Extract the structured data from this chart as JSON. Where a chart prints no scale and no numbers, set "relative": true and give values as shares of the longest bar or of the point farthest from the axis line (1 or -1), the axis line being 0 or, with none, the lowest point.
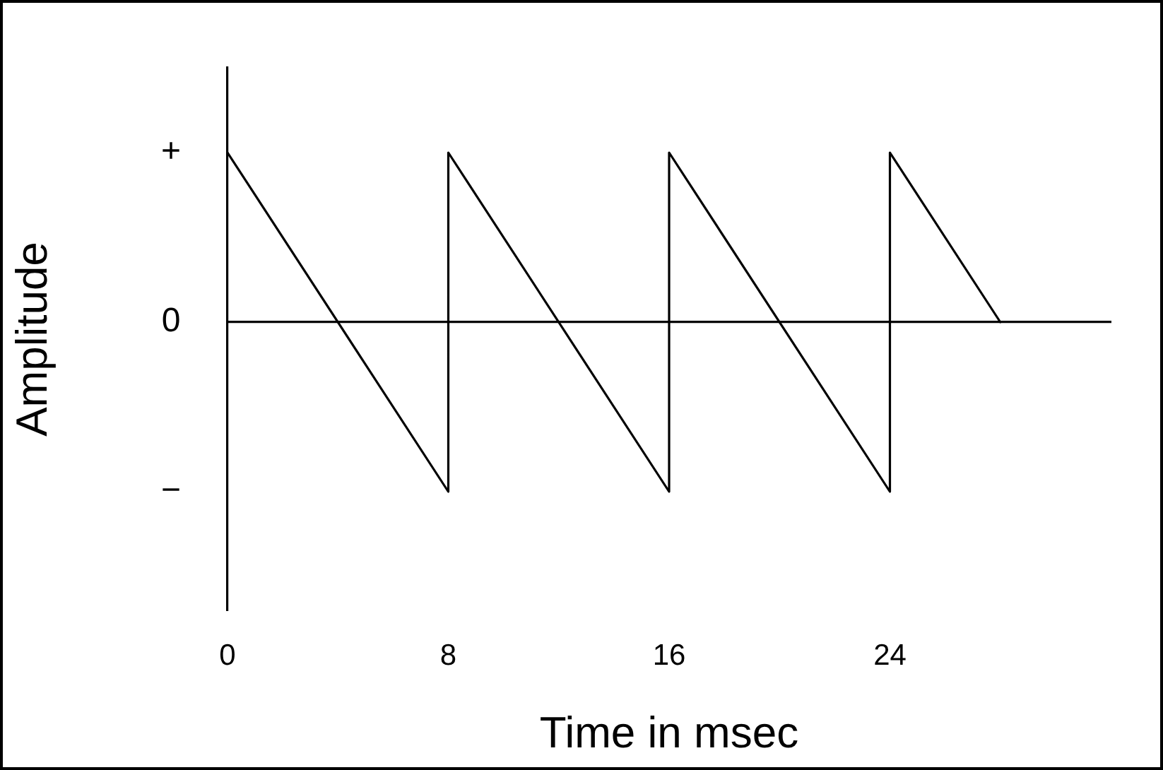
{
  "chart_data": {
    "type": "line",
    "xlabel": "Time in msec",
    "ylabel": "Amplitude",
    "x": [
      0,
      8,
      8,
      16,
      16,
      24,
      24,
      28
    ],
    "series": [
      {
        "color": "#000000",
        "values": [
          1,
          -1,
          1,
          -1,
          1,
          -1,
          1,
          0
        ]
      }
    ],
    "xlim": [
      0,
      32
    ],
    "xticks": [
      0,
      8,
      16,
      24
    ],
    "relative": true,
    "annotations": [
      "+",
      "0",
      "−"
    ],
    "marker": "none",
    "line_style": "solid"
  }
}
